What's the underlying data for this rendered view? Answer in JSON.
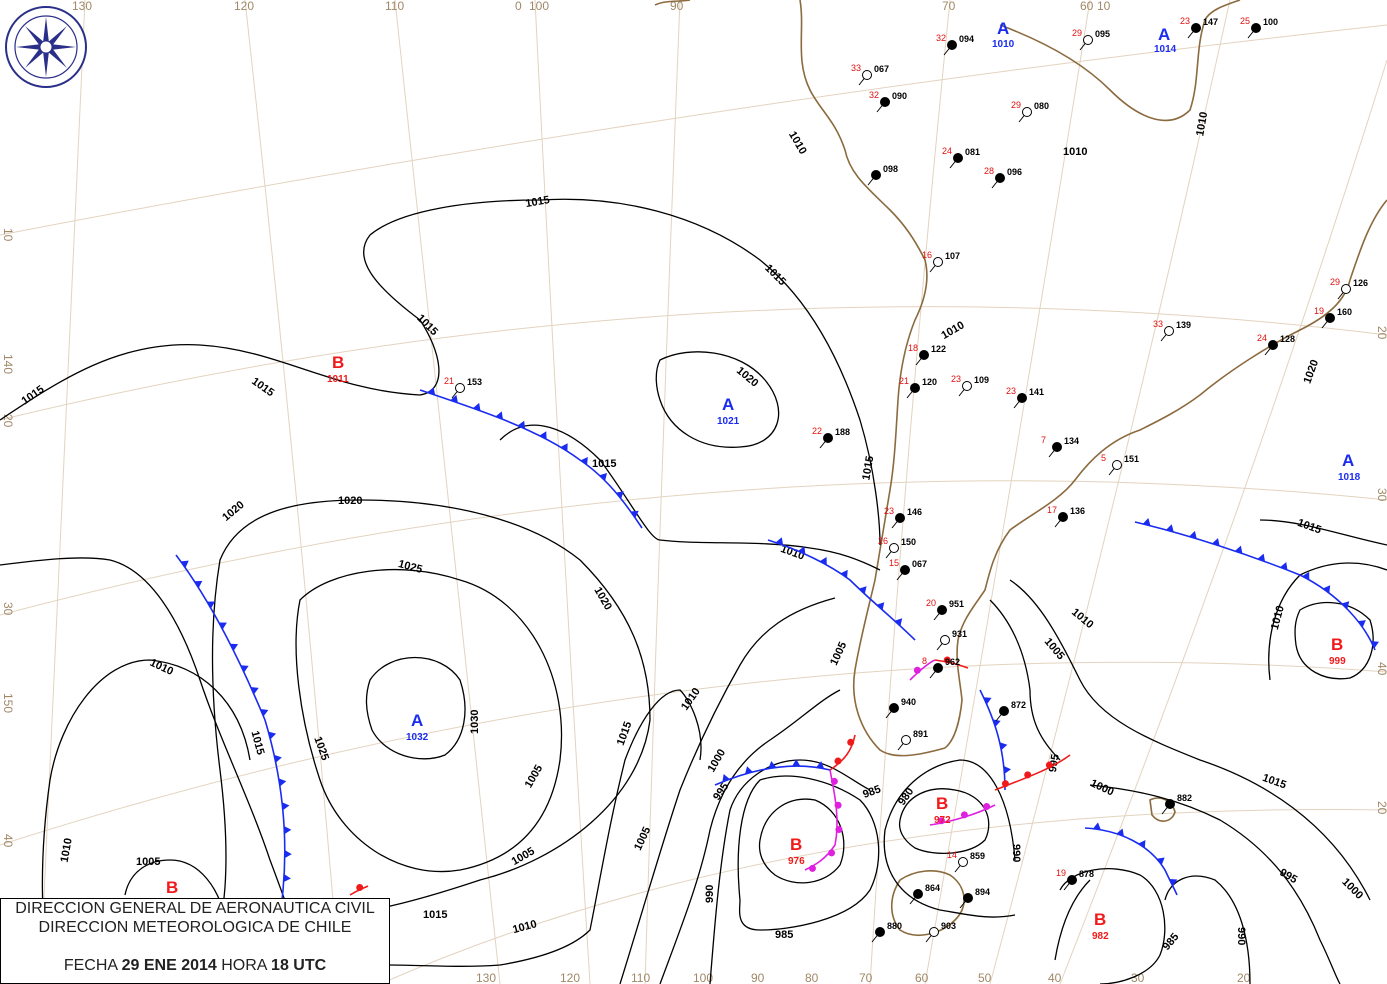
{
  "title": {
    "line1": "DIRECCION GENERAL DE AERONAUTICA CIVIL",
    "line2": "DIRECCION METEOROLOGICA DE CHILE",
    "date_label": "FECHA",
    "date": "29 ENE 2014",
    "time_label": "HORA",
    "time": "18 UTC"
  },
  "logo": {
    "text": "DIRECCION METEOROLOGICA CHILE"
  },
  "colors": {
    "high": "#1a2cf0",
    "low": "#f01a1a",
    "isobar": "#000000",
    "coast": "#8b6a3e",
    "grid": "#e3d3bf",
    "cold_front": "#1a2cf0",
    "warm_front": "#f01a1a",
    "occluded_front": "#e020e0"
  },
  "grid_labels": {
    "top": [
      "130",
      "120",
      "110",
      "0",
      "100",
      "90",
      "70",
      "60",
      "10"
    ],
    "left": [
      "10",
      "140",
      "20",
      "30",
      "150",
      "40"
    ],
    "bottom": [
      "130",
      "120",
      "110",
      "100",
      "90",
      "80",
      "70",
      "60",
      "50",
      "40",
      "30",
      "20"
    ],
    "right": [
      "20",
      "30",
      "40",
      "20"
    ]
  },
  "pressure_centers": [
    {
      "type": "B",
      "value": "1011"
    },
    {
      "type": "A",
      "value": "1021"
    },
    {
      "type": "A",
      "value": "1032"
    },
    {
      "type": "B",
      "value": "976"
    },
    {
      "type": "B",
      "value": "972"
    },
    {
      "type": "B",
      "value": "982"
    },
    {
      "type": "B",
      "value": "999"
    },
    {
      "type": "A",
      "value": "1018"
    },
    {
      "type": "A",
      "value": "1010"
    },
    {
      "type": "A",
      "value": "1014"
    },
    {
      "type": "B",
      "value": ""
    }
  ],
  "isobar_labels": [
    "1015",
    "1015",
    "1015",
    "1015",
    "1015",
    "1015",
    "1015",
    "1020",
    "1020",
    "1025",
    "1020",
    "1030",
    "1025",
    "1020",
    "1015",
    "1010",
    "1010",
    "1005",
    "1015",
    "1010",
    "1005",
    "1000",
    "995",
    "985",
    "980",
    "990",
    "1000",
    "995",
    "990",
    "1010",
    "1005",
    "1010",
    "1010",
    "1010",
    "1005",
    "1000",
    "995",
    "985",
    "990",
    "1015",
    "1010",
    "1020",
    "1015",
    "1010",
    "985"
  ],
  "stations": [
    {
      "p": "153",
      "t": "21"
    },
    {
      "p": "188",
      "t": "22"
    },
    {
      "p": "098",
      "t": ""
    },
    {
      "p": "067",
      "t": "33"
    },
    {
      "p": "090",
      "t": "32"
    },
    {
      "p": "094",
      "t": "32"
    },
    {
      "p": "095",
      "t": "29"
    },
    {
      "p": "147",
      "t": "23"
    },
    {
      "p": "100",
      "t": "25"
    },
    {
      "p": "080",
      "t": "29"
    },
    {
      "p": "081",
      "t": "24"
    },
    {
      "p": "096",
      "t": "28"
    },
    {
      "p": "107",
      "t": "16"
    },
    {
      "p": "122",
      "t": "18"
    },
    {
      "p": "120",
      "t": "21"
    },
    {
      "p": "109",
      "t": "23"
    },
    {
      "p": "141",
      "t": "23"
    },
    {
      "p": "134",
      "t": "7"
    },
    {
      "p": "151",
      "t": "5"
    },
    {
      "p": "136",
      "t": "17"
    },
    {
      "p": "146",
      "t": "23"
    },
    {
      "p": "150",
      "t": "26"
    },
    {
      "p": "067",
      "t": "15"
    },
    {
      "p": "951",
      "t": "20"
    },
    {
      "p": "931",
      "t": ""
    },
    {
      "p": "962",
      "t": "8"
    },
    {
      "p": "940",
      "t": ""
    },
    {
      "p": "891",
      "t": ""
    },
    {
      "p": "872",
      "t": ""
    },
    {
      "p": "882",
      "t": ""
    },
    {
      "p": "859",
      "t": "14"
    },
    {
      "p": "864",
      "t": ""
    },
    {
      "p": "894",
      "t": ""
    },
    {
      "p": "903",
      "t": ""
    },
    {
      "p": "880",
      "t": ""
    },
    {
      "p": "878",
      "t": "19"
    },
    {
      "p": "126",
      "t": "29"
    },
    {
      "p": "128",
      "t": "24"
    },
    {
      "p": "160",
      "t": "19"
    },
    {
      "p": "139",
      "t": "33"
    }
  ]
}
